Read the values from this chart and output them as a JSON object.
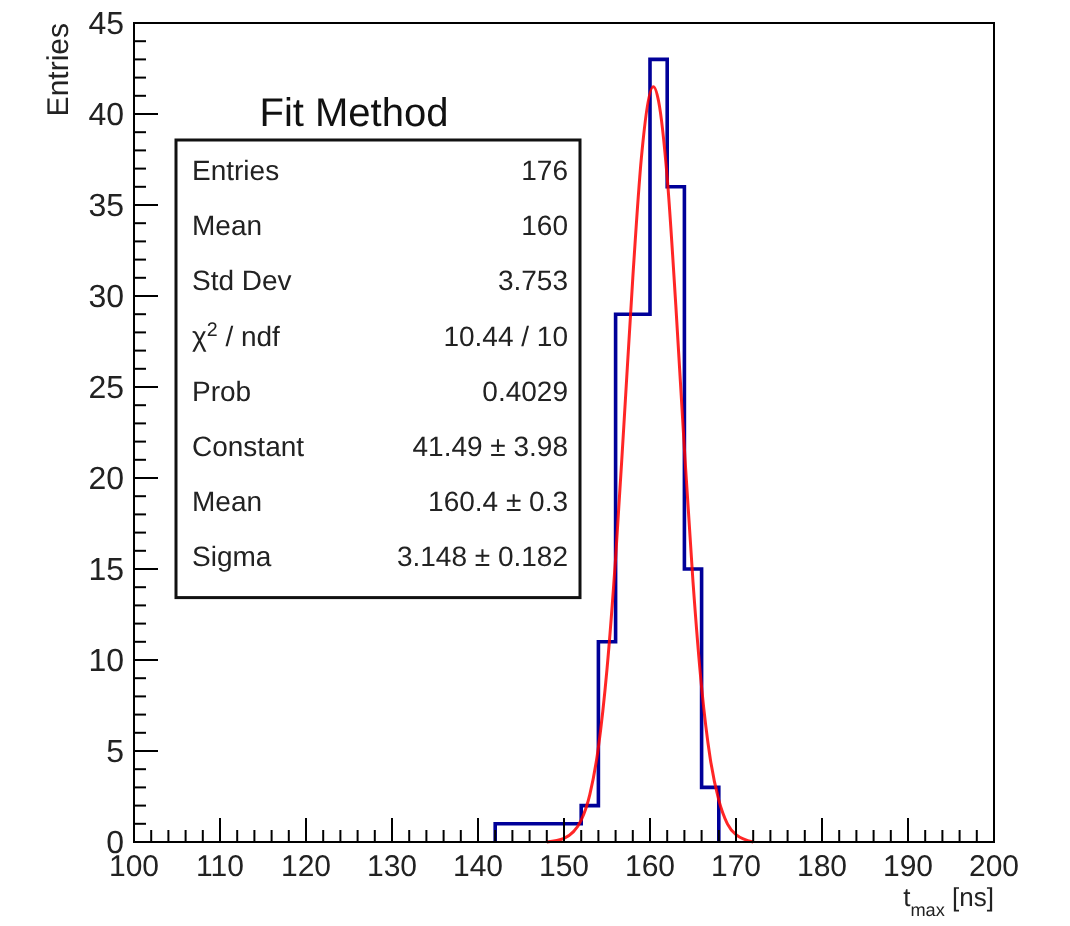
{
  "chart_data": {
    "type": "histogram",
    "title": "Fit Method",
    "xlabel": "t$_{max}$ [ns]",
    "ylabel": "Entries",
    "xlim": [
      100,
      200
    ],
    "ylim": [
      0,
      45
    ],
    "xticks": [
      100,
      110,
      120,
      130,
      140,
      150,
      160,
      170,
      180,
      190,
      200,
      {
        "value": 102,
        "label": null
      },
      {
        "value": 104,
        "label": null
      },
      {
        "value": 106,
        "label": null
      },
      {
        "value": 108,
        "label": null
      },
      {
        "value": 112,
        "label": null
      },
      {
        "value": 114,
        "label": null
      },
      {
        "value": 116,
        "label": null
      },
      {
        "value": 118,
        "label": null
      },
      {
        "value": 122,
        "label": null
      },
      {
        "value": 124,
        "label": null
      },
      {
        "value": 126,
        "label": null
      },
      {
        "value": 128,
        "label": null
      },
      {
        "value": 132,
        "label": null
      },
      {
        "value": 134,
        "label": null
      },
      {
        "value": 136,
        "label": null
      },
      {
        "value": 138,
        "label": null
      },
      {
        "value": 142,
        "label": null
      },
      {
        "value": 144,
        "label": null
      },
      {
        "value": 146,
        "label": null
      },
      {
        "value": 148,
        "label": null
      },
      {
        "value": 152,
        "label": null
      },
      {
        "value": 154,
        "label": null
      },
      {
        "value": 156,
        "label": null
      },
      {
        "value": 158,
        "label": null
      },
      {
        "value": 162,
        "label": null
      },
      {
        "value": 164,
        "label": null
      },
      {
        "value": 166,
        "label": null
      },
      {
        "value": 168,
        "label": null
      },
      {
        "value": 172,
        "label": null
      },
      {
        "value": 174,
        "label": null
      },
      {
        "value": 176,
        "label": null
      },
      {
        "value": 178,
        "label": null
      },
      {
        "value": 182,
        "label": null
      },
      {
        "value": 184,
        "label": null
      },
      {
        "value": 186,
        "label": null
      },
      {
        "value": 188,
        "label": null
      },
      {
        "value": 192,
        "label": null
      },
      {
        "value": 194,
        "label": null
      },
      {
        "value": 196,
        "label": null
      },
      {
        "value": 198,
        "label": null
      }
    ],
    "yticks": [
      0,
      5,
      10,
      15,
      20,
      25,
      30,
      35,
      40,
      45,
      {
        "value": 1,
        "label": null
      },
      {
        "value": 2,
        "label": null
      },
      {
        "value": 3,
        "label": null
      },
      {
        "value": 4,
        "label": null
      },
      {
        "value": 6,
        "label": null
      },
      {
        "value": 7,
        "label": null
      },
      {
        "value": 8,
        "label": null
      },
      {
        "value": 9,
        "label": null
      },
      {
        "value": 11,
        "label": null
      },
      {
        "value": 12,
        "label": null
      },
      {
        "value": 13,
        "label": null
      },
      {
        "value": 14,
        "label": null
      },
      {
        "value": 16,
        "label": null
      },
      {
        "value": 17,
        "label": null
      },
      {
        "value": 18,
        "label": null
      },
      {
        "value": 19,
        "label": null
      },
      {
        "value": 21,
        "label": null
      },
      {
        "value": 22,
        "label": null
      },
      {
        "value": 23,
        "label": null
      },
      {
        "value": 24,
        "label": null
      },
      {
        "value": 26,
        "label": null
      },
      {
        "value": 27,
        "label": null
      },
      {
        "value": 28,
        "label": null
      },
      {
        "value": 29,
        "label": null
      },
      {
        "value": 31,
        "label": null
      },
      {
        "value": 32,
        "label": null
      },
      {
        "value": 33,
        "label": null
      },
      {
        "value": 34,
        "label": null
      },
      {
        "value": 36,
        "label": null
      },
      {
        "value": 37,
        "label": null
      },
      {
        "value": 38,
        "label": null
      },
      {
        "value": 39,
        "label": null
      },
      {
        "value": 41,
        "label": null
      },
      {
        "value": 42,
        "label": null
      },
      {
        "value": 43,
        "label": null
      },
      {
        "value": 44,
        "label": null
      }
    ],
    "series": [
      {
        "color": "#000099",
        "bins": [
          142,
          144,
          146,
          148,
          150,
          152,
          154,
          156,
          158,
          160,
          162,
          164,
          166,
          168
        ],
        "values": [
          1,
          1,
          1,
          1,
          1,
          2,
          11,
          29,
          29,
          43,
          36,
          15,
          3
        ]
      },
      {
        "type": "line",
        "color": "#ff0000",
        "x": [
          148,
          150,
          152,
          153,
          154,
          155,
          156,
          157,
          158,
          159,
          160.4,
          161,
          162,
          163,
          164,
          165,
          166,
          167,
          168,
          169,
          170,
          172
        ],
        "values": [
          0,
          0.2,
          1.2,
          2.6,
          5.2,
          9.5,
          15.6,
          23.2,
          31,
          37.6,
          41.5,
          40.7,
          36.5,
          29.5,
          21.6,
          14.3,
          8.5,
          4.6,
          2.3,
          1,
          0.4,
          0
        ]
      }
    ],
    "annotations": [
      "Entries",
      "176",
      "Mean",
      "160",
      "Std Dev",
      "3.753",
      "χ$^{2}$ / ndf",
      "10.44 / 10",
      "Prob",
      "0.4029",
      "Constant",
      "41.49 ± 3.98",
      "Mean",
      "160.4 ± 0.3",
      "Sigma",
      "3.148 ± 0.182"
    ],
    "grid": false
  }
}
